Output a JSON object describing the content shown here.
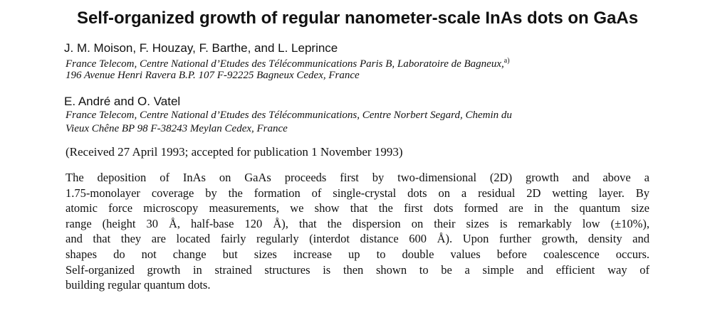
{
  "header": {
    "title": "Self-organized growth of regular nanometer-scale InAs dots on GaAs"
  },
  "author_groups": [
    {
      "authors": "J. M. Moison, F. Houzay, F. Barthe, and L. Leprince",
      "affiliation_lines": [
        "France Telecom, Centre National d’Etudes des Télécommunications Paris B, Laboratoire de Bagneux,",
        "196 Avenue Henri Ravera B.P. 107 F-92225 Bagneux Cedex, France"
      ],
      "affiliation_note": "a)"
    },
    {
      "authors": "E. André and O. Vatel",
      "affiliation_lines": [
        "France Telecom, Centre National d’Etudes des Télécommunications, Centre Norbert Segard, Chemin du",
        "Vieux Chêne BP 98 F-38243 Meylan Cedex, France"
      ]
    }
  ],
  "received": "(Received 27 April 1993; accepted for publication 1 November 1993)",
  "abstract_lines": [
    "The deposition of InAs on GaAs proceeds first by two-dimensional (2D) growth and above a",
    "1.75-monolayer coverage by the formation of single-crystal dots on a residual 2D wetting layer. By",
    "atomic force microscopy measurements, we show that the first dots formed are in the quantum size",
    "range (height 30 Å, half-base 120 Å), that the dispersion on their sizes is remarkably low (±10%),",
    "and that they are located fairly regularly (interdot distance 600 Å). Upon further growth, density and",
    "shapes do not change but sizes increase up to double values before coalescence occurs.",
    "Self-organized growth in strained structures is then shown to be a simple and efficient way of",
    "building regular quantum dots."
  ]
}
